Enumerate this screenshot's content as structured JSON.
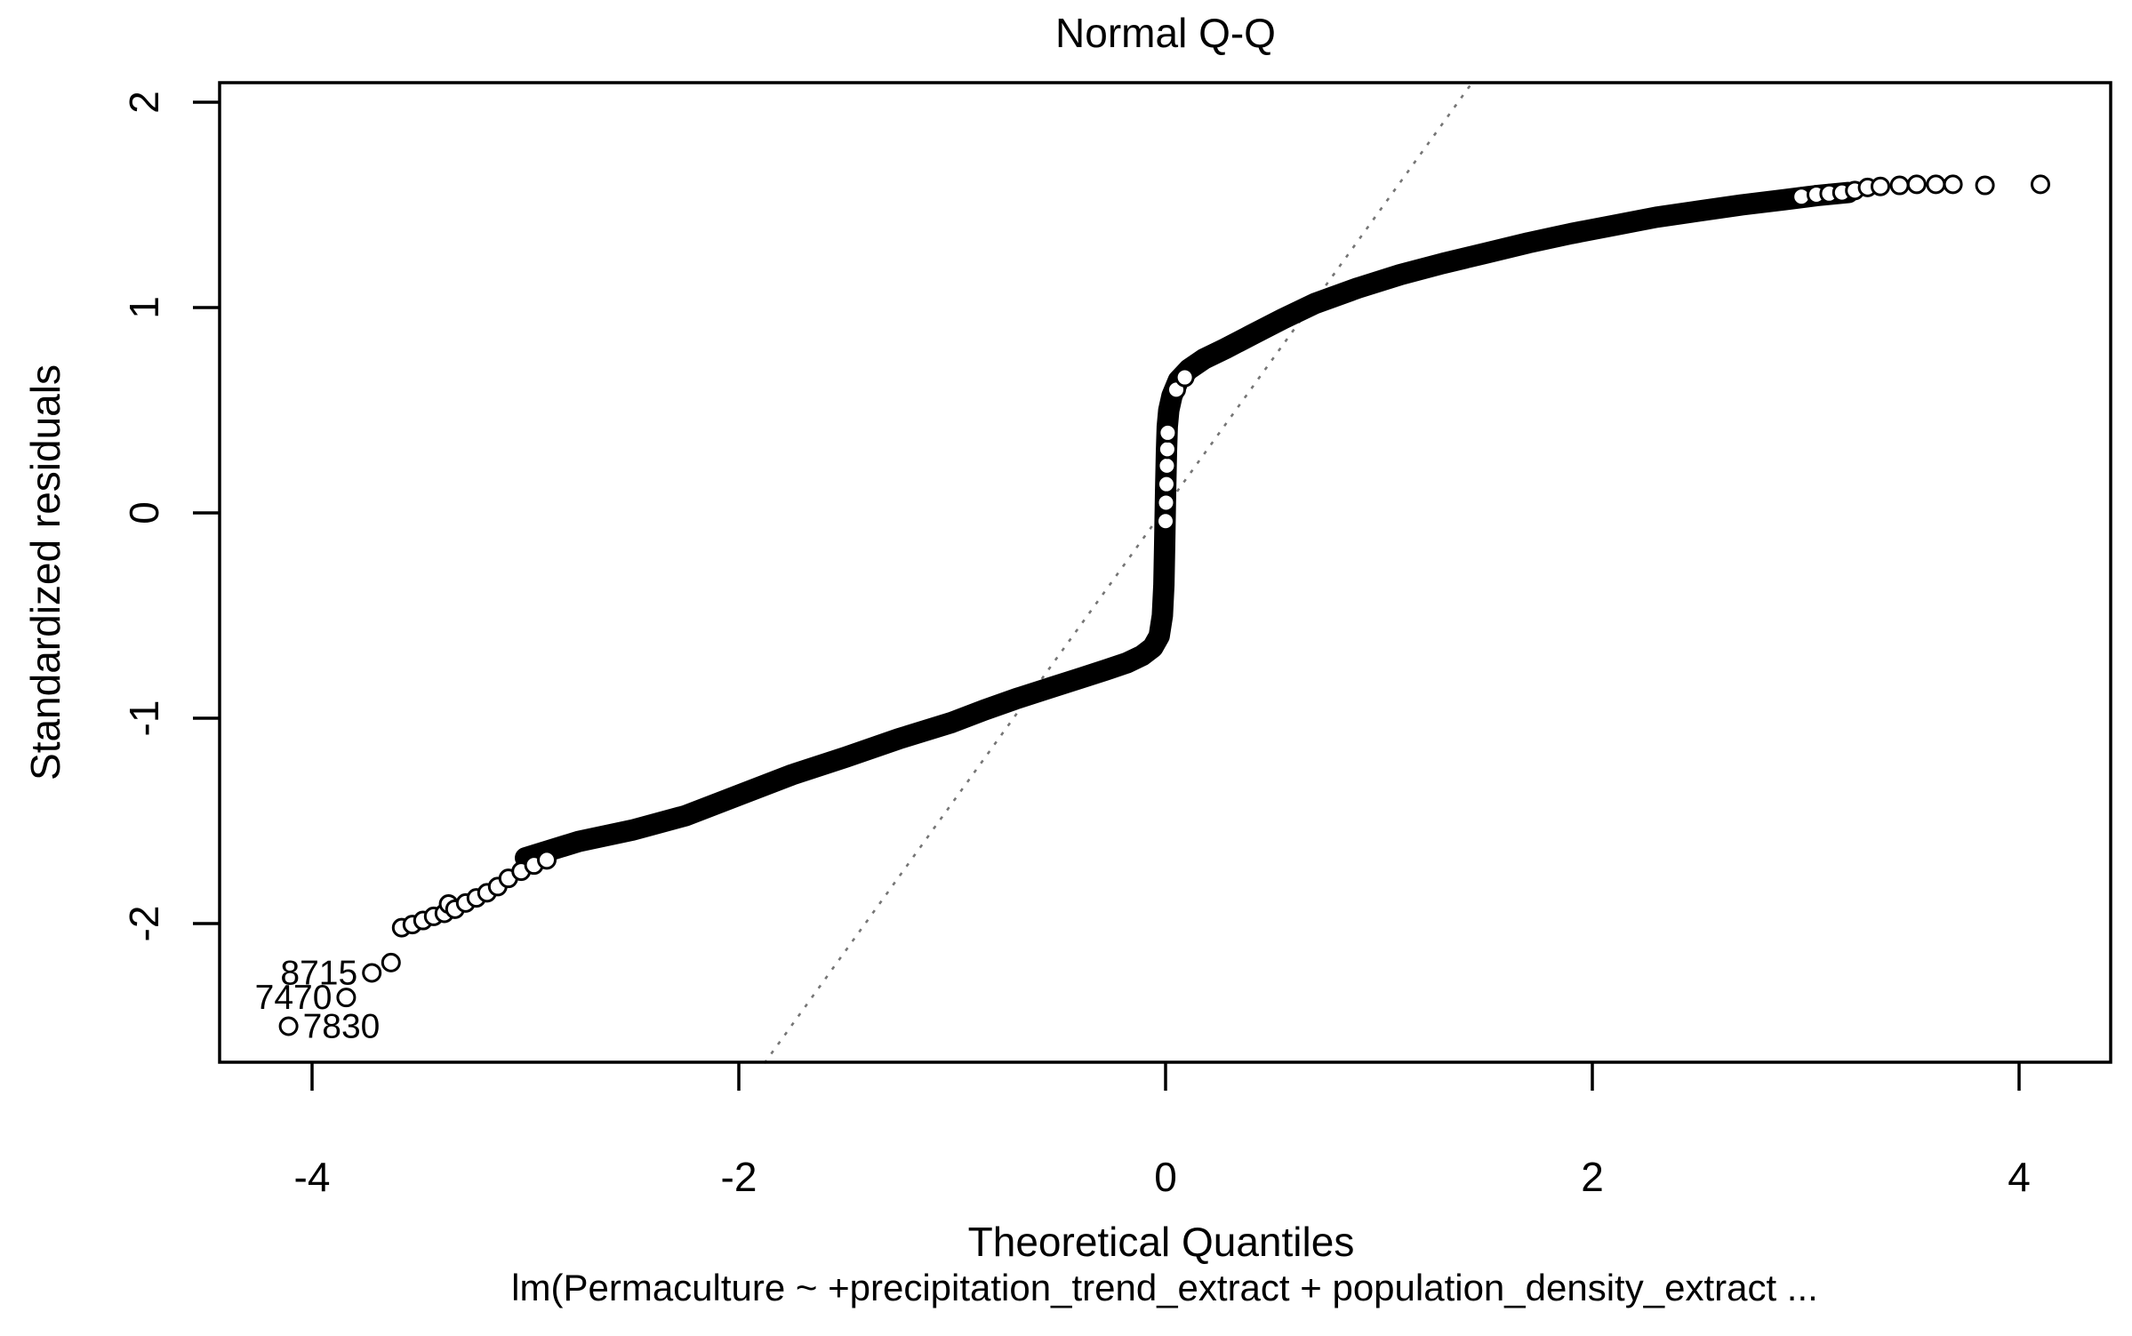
{
  "figure": {
    "title": "Normal Q-Q",
    "x_axis_label": "Theoretical Quantiles",
    "y_axis_label": "Standardized residuals",
    "sub_caption": "lm(Permaculture ~ +precipitation_trend_extract + population_density_extract ..."
  },
  "colors": {
    "points": "#000000",
    "text": "#000000",
    "reference_line": "#757575",
    "background": "#ffffff"
  },
  "chart_data": {
    "type": "scatter",
    "title": "Normal Q-Q",
    "xlabel": "Theoretical Quantiles",
    "ylabel": "Standardized residuals",
    "sub_caption": "lm(Permaculture ~ +precipitation_trend_extract + population_density_extract ...",
    "xlim": [
      -4.43,
      4.43
    ],
    "ylim": [
      -2.68,
      2.1
    ],
    "x_ticks": [
      -4,
      -2,
      0,
      2,
      4
    ],
    "y_ticks": [
      2,
      1,
      0,
      -1,
      -2
    ],
    "grid": false,
    "legend": false,
    "marker": "open-circle",
    "band_path": [
      [
        -3.0,
        -1.68
      ],
      [
        -2.75,
        -1.6
      ],
      [
        -2.5,
        -1.545
      ],
      [
        -2.25,
        -1.475
      ],
      [
        -2.0,
        -1.375
      ],
      [
        -1.75,
        -1.275
      ],
      [
        -1.5,
        -1.19
      ],
      [
        -1.25,
        -1.1
      ],
      [
        -1.0,
        -1.02
      ],
      [
        -0.85,
        -0.96
      ],
      [
        -0.7,
        -0.905
      ],
      [
        -0.55,
        -0.855
      ],
      [
        -0.4,
        -0.805
      ],
      [
        -0.28,
        -0.765
      ],
      [
        -0.18,
        -0.73
      ],
      [
        -0.11,
        -0.695
      ],
      [
        -0.06,
        -0.655
      ],
      [
        -0.03,
        -0.6
      ],
      [
        -0.015,
        -0.5
      ],
      [
        -0.008,
        -0.35
      ],
      [
        -0.004,
        -0.15
      ],
      [
        0.0,
        0.1
      ],
      [
        0.004,
        0.3
      ],
      [
        0.008,
        0.42
      ],
      [
        0.015,
        0.5
      ],
      [
        0.03,
        0.57
      ],
      [
        0.06,
        0.645
      ],
      [
        0.11,
        0.7
      ],
      [
        0.18,
        0.75
      ],
      [
        0.28,
        0.8
      ],
      [
        0.4,
        0.865
      ],
      [
        0.55,
        0.945
      ],
      [
        0.7,
        1.02
      ],
      [
        0.9,
        1.095
      ],
      [
        1.1,
        1.16
      ],
      [
        1.3,
        1.215
      ],
      [
        1.5,
        1.265
      ],
      [
        1.7,
        1.315
      ],
      [
        1.9,
        1.36
      ],
      [
        2.1,
        1.4
      ],
      [
        2.3,
        1.44
      ],
      [
        2.5,
        1.47
      ],
      [
        2.7,
        1.5
      ],
      [
        2.9,
        1.525
      ],
      [
        3.05,
        1.545
      ],
      [
        3.2,
        1.56
      ]
    ],
    "visible_points": [
      [
        -3.58,
        -2.02
      ],
      [
        -3.53,
        -2.005
      ],
      [
        -3.48,
        -1.985
      ],
      [
        -3.43,
        -1.965
      ],
      [
        -3.38,
        -1.95
      ],
      [
        -3.36,
        -1.905
      ],
      [
        -3.33,
        -1.93
      ],
      [
        -3.28,
        -1.9
      ],
      [
        -3.23,
        -1.875
      ],
      [
        -3.18,
        -1.85
      ],
      [
        -3.13,
        -1.82
      ],
      [
        -3.08,
        -1.78
      ],
      [
        -3.02,
        -1.745
      ],
      [
        -2.96,
        -1.715
      ],
      [
        -2.9,
        -1.69
      ],
      [
        0.0,
        -0.04
      ],
      [
        0.002,
        0.05
      ],
      [
        0.004,
        0.14
      ],
      [
        0.006,
        0.23
      ],
      [
        0.008,
        0.31
      ],
      [
        0.01,
        0.39
      ],
      [
        0.05,
        0.6
      ],
      [
        0.09,
        0.66
      ],
      [
        2.98,
        1.54
      ],
      [
        3.05,
        1.55
      ],
      [
        3.11,
        1.555
      ],
      [
        3.17,
        1.56
      ],
      [
        3.23,
        1.57
      ],
      [
        3.29,
        1.585
      ],
      [
        3.35,
        1.59
      ],
      [
        3.44,
        1.595
      ],
      [
        3.52,
        1.6
      ],
      [
        3.61,
        1.6
      ],
      [
        3.69,
        1.6
      ],
      [
        3.84,
        1.595
      ],
      [
        4.1,
        1.6
      ],
      [
        -3.63,
        -2.19
      ]
    ],
    "labeled_outliers": [
      {
        "id": "8715",
        "x": -3.72,
        "y": -2.24,
        "label_side": "left"
      },
      {
        "id": "7470",
        "x": -3.84,
        "y": -2.36,
        "label_side": "left"
      },
      {
        "id": "7830",
        "x": -4.11,
        "y": -2.5,
        "label_side": "right"
      }
    ],
    "reference_line": {
      "style": "dashed",
      "x1": -1.88,
      "y1": -2.68,
      "x2": 1.44,
      "y2": 2.1
    }
  }
}
